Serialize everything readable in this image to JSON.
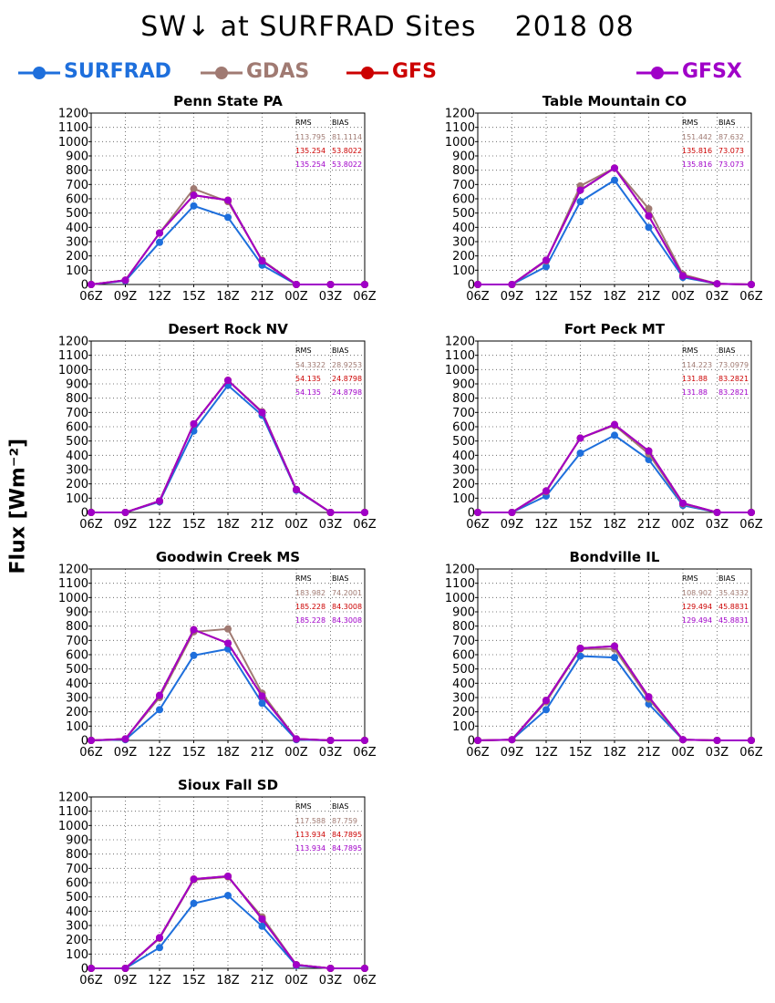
{
  "page": {
    "title": "SW↓ at SURFRAD Sites    2018 08",
    "ylabel": "Flux [Wm⁻²]"
  },
  "legend": [
    {
      "name": "SURFRAD",
      "color": "#1e6fdc"
    },
    {
      "name": "GDAS",
      "color": "#a07a72"
    },
    {
      "name": "GFS",
      "color": "#cc0000"
    },
    {
      "name": "GFSX",
      "color": "#a000c8"
    }
  ],
  "stats_headers": {
    "rms": "RMS",
    "bias": "BIAS"
  },
  "chart_data": [
    {
      "type": "line",
      "title": "Penn State PA",
      "x": [
        "06Z",
        "09Z",
        "12Z",
        "15Z",
        "18Z",
        "21Z",
        "00Z",
        "03Z",
        "06Z"
      ],
      "yticks": [
        0,
        100,
        200,
        300,
        400,
        500,
        600,
        700,
        800,
        900,
        1000,
        1100,
        1200
      ],
      "ylim": [
        0,
        1200
      ],
      "grid": true,
      "series": [
        {
          "name": "SURFRAD",
          "values": [
            0,
            25,
            295,
            550,
            470,
            135,
            0,
            0,
            0
          ]
        },
        {
          "name": "GDAS",
          "values": [
            0,
            30,
            360,
            670,
            580,
            170,
            0,
            0,
            0
          ]
        },
        {
          "name": "GFS",
          "values": [
            0,
            30,
            360,
            625,
            590,
            165,
            0,
            0,
            0
          ]
        },
        {
          "name": "GFSX",
          "values": [
            0,
            30,
            360,
            625,
            590,
            165,
            0,
            0,
            0
          ]
        }
      ],
      "stats": [
        {
          "series": "GDAS",
          "rms": "113.795",
          "bias": "81.1114"
        },
        {
          "series": "GFS",
          "rms": "135.254",
          "bias": "53.8022"
        },
        {
          "series": "GFSX",
          "rms": "135.254",
          "bias": "53.8022"
        }
      ]
    },
    {
      "type": "line",
      "title": "Table Mountain CO",
      "x": [
        "06Z",
        "09Z",
        "12Z",
        "15Z",
        "18Z",
        "21Z",
        "00Z",
        "03Z",
        "06Z"
      ],
      "yticks": [
        0,
        100,
        200,
        300,
        400,
        500,
        600,
        700,
        800,
        900,
        1000,
        1100,
        1200
      ],
      "ylim": [
        0,
        1200
      ],
      "grid": true,
      "series": [
        {
          "name": "SURFRAD",
          "values": [
            0,
            0,
            125,
            580,
            730,
            400,
            50,
            5,
            0
          ]
        },
        {
          "name": "GDAS",
          "values": [
            0,
            0,
            165,
            690,
            815,
            530,
            70,
            5,
            0
          ]
        },
        {
          "name": "GFS",
          "values": [
            0,
            0,
            170,
            660,
            815,
            480,
            60,
            5,
            0
          ]
        },
        {
          "name": "GFSX",
          "values": [
            0,
            0,
            170,
            660,
            815,
            480,
            60,
            5,
            0
          ]
        }
      ],
      "stats": [
        {
          "series": "GDAS",
          "rms": "151.442",
          "bias": "87.632"
        },
        {
          "series": "GFS",
          "rms": "135.816",
          "bias": "73.073"
        },
        {
          "series": "GFSX",
          "rms": "135.816",
          "bias": "73.073"
        }
      ]
    },
    {
      "type": "line",
      "title": "Desert Rock NV",
      "x": [
        "06Z",
        "09Z",
        "12Z",
        "15Z",
        "18Z",
        "21Z",
        "00Z",
        "03Z",
        "06Z"
      ],
      "yticks": [
        0,
        100,
        200,
        300,
        400,
        500,
        600,
        700,
        800,
        900,
        1000,
        1100,
        1200
      ],
      "ylim": [
        0,
        1200
      ],
      "grid": true,
      "series": [
        {
          "name": "SURFRAD",
          "values": [
            0,
            0,
            75,
            570,
            890,
            680,
            155,
            0,
            0
          ]
        },
        {
          "name": "GDAS",
          "values": [
            0,
            0,
            80,
            620,
            925,
            705,
            160,
            0,
            0
          ]
        },
        {
          "name": "GFS",
          "values": [
            0,
            0,
            80,
            620,
            925,
            700,
            160,
            0,
            0
          ]
        },
        {
          "name": "GFSX",
          "values": [
            0,
            0,
            80,
            620,
            925,
            700,
            160,
            0,
            0
          ]
        }
      ],
      "stats": [
        {
          "series": "GDAS",
          "rms": "54.3322",
          "bias": "28.9253"
        },
        {
          "series": "GFS",
          "rms": "54.135",
          "bias": "24.8798"
        },
        {
          "series": "GFSX",
          "rms": "54.135",
          "bias": "24.8798"
        }
      ]
    },
    {
      "type": "line",
      "title": "Fort Peck MT",
      "x": [
        "06Z",
        "09Z",
        "12Z",
        "15Z",
        "18Z",
        "21Z",
        "00Z",
        "03Z",
        "06Z"
      ],
      "yticks": [
        0,
        100,
        200,
        300,
        400,
        500,
        600,
        700,
        800,
        900,
        1000,
        1100,
        1200
      ],
      "ylim": [
        0,
        1200
      ],
      "grid": true,
      "series": [
        {
          "name": "SURFRAD",
          "values": [
            0,
            0,
            115,
            415,
            540,
            370,
            50,
            0,
            0
          ]
        },
        {
          "name": "GDAS",
          "values": [
            0,
            0,
            145,
            520,
            610,
            410,
            60,
            0,
            0
          ]
        },
        {
          "name": "GFS",
          "values": [
            0,
            0,
            150,
            520,
            615,
            430,
            65,
            0,
            0
          ]
        },
        {
          "name": "GFSX",
          "values": [
            0,
            0,
            150,
            520,
            615,
            430,
            65,
            0,
            0
          ]
        }
      ],
      "stats": [
        {
          "series": "GDAS",
          "rms": "114.223",
          "bias": "73.0979"
        },
        {
          "series": "GFS",
          "rms": "131.88",
          "bias": "83.2821"
        },
        {
          "series": "GFSX",
          "rms": "131.88",
          "bias": "83.2821"
        }
      ]
    },
    {
      "type": "line",
      "title": "Goodwin Creek MS",
      "x": [
        "06Z",
        "09Z",
        "12Z",
        "15Z",
        "18Z",
        "21Z",
        "00Z",
        "03Z",
        "06Z"
      ],
      "yticks": [
        0,
        100,
        200,
        300,
        400,
        500,
        600,
        700,
        800,
        900,
        1000,
        1100,
        1200
      ],
      "ylim": [
        0,
        1200
      ],
      "grid": true,
      "series": [
        {
          "name": "SURFRAD",
          "values": [
            0,
            5,
            215,
            595,
            640,
            260,
            5,
            0,
            0
          ]
        },
        {
          "name": "GDAS",
          "values": [
            0,
            10,
            300,
            760,
            780,
            330,
            10,
            0,
            0
          ]
        },
        {
          "name": "GFS",
          "values": [
            0,
            10,
            315,
            775,
            680,
            310,
            10,
            0,
            0
          ]
        },
        {
          "name": "GFSX",
          "values": [
            0,
            10,
            315,
            775,
            680,
            310,
            10,
            0,
            0
          ]
        }
      ],
      "stats": [
        {
          "series": "GDAS",
          "rms": "183.982",
          "bias": "74.2001"
        },
        {
          "series": "GFS",
          "rms": "185.228",
          "bias": "84.3008"
        },
        {
          "series": "GFSX",
          "rms": "185.228",
          "bias": "84.3008"
        }
      ]
    },
    {
      "type": "line",
      "title": "Bondville IL",
      "x": [
        "06Z",
        "09Z",
        "12Z",
        "15Z",
        "18Z",
        "21Z",
        "00Z",
        "03Z",
        "06Z"
      ],
      "yticks": [
        0,
        100,
        200,
        300,
        400,
        500,
        600,
        700,
        800,
        900,
        1000,
        1100,
        1200
      ],
      "ylim": [
        0,
        1200
      ],
      "grid": true,
      "series": [
        {
          "name": "SURFRAD",
          "values": [
            0,
            5,
            215,
            590,
            580,
            255,
            5,
            0,
            0
          ]
        },
        {
          "name": "GDAS",
          "values": [
            0,
            5,
            270,
            640,
            640,
            290,
            5,
            0,
            0
          ]
        },
        {
          "name": "GFS",
          "values": [
            0,
            5,
            280,
            645,
            660,
            305,
            5,
            0,
            0
          ]
        },
        {
          "name": "GFSX",
          "values": [
            0,
            5,
            280,
            645,
            660,
            305,
            5,
            0,
            0
          ]
        }
      ],
      "stats": [
        {
          "series": "GDAS",
          "rms": "108.902",
          "bias": "35.4332"
        },
        {
          "series": "GFS",
          "rms": "129.494",
          "bias": "45.8831"
        },
        {
          "series": "GFSX",
          "rms": "129.494",
          "bias": "45.8831"
        }
      ]
    },
    {
      "type": "line",
      "title": "Sioux Fall SD",
      "x": [
        "06Z",
        "09Z",
        "12Z",
        "15Z",
        "18Z",
        "21Z",
        "00Z",
        "03Z",
        "06Z"
      ],
      "yticks": [
        0,
        100,
        200,
        300,
        400,
        500,
        600,
        700,
        800,
        900,
        1000,
        1100,
        1200
      ],
      "ylim": [
        0,
        1200
      ],
      "grid": true,
      "series": [
        {
          "name": "SURFRAD",
          "values": [
            0,
            0,
            145,
            455,
            510,
            295,
            20,
            0,
            0
          ]
        },
        {
          "name": "GDAS",
          "values": [
            0,
            0,
            210,
            620,
            640,
            360,
            25,
            0,
            0
          ]
        },
        {
          "name": "GFS",
          "values": [
            0,
            0,
            215,
            625,
            645,
            345,
            25,
            0,
            0
          ]
        },
        {
          "name": "GFSX",
          "values": [
            0,
            0,
            215,
            625,
            645,
            345,
            25,
            0,
            0
          ]
        }
      ],
      "stats": [
        {
          "series": "GDAS",
          "rms": "117.588",
          "bias": "87.759"
        },
        {
          "series": "GFS",
          "rms": "113.934",
          "bias": "84.7895"
        },
        {
          "series": "GFSX",
          "rms": "113.934",
          "bias": "84.7895"
        }
      ]
    }
  ]
}
